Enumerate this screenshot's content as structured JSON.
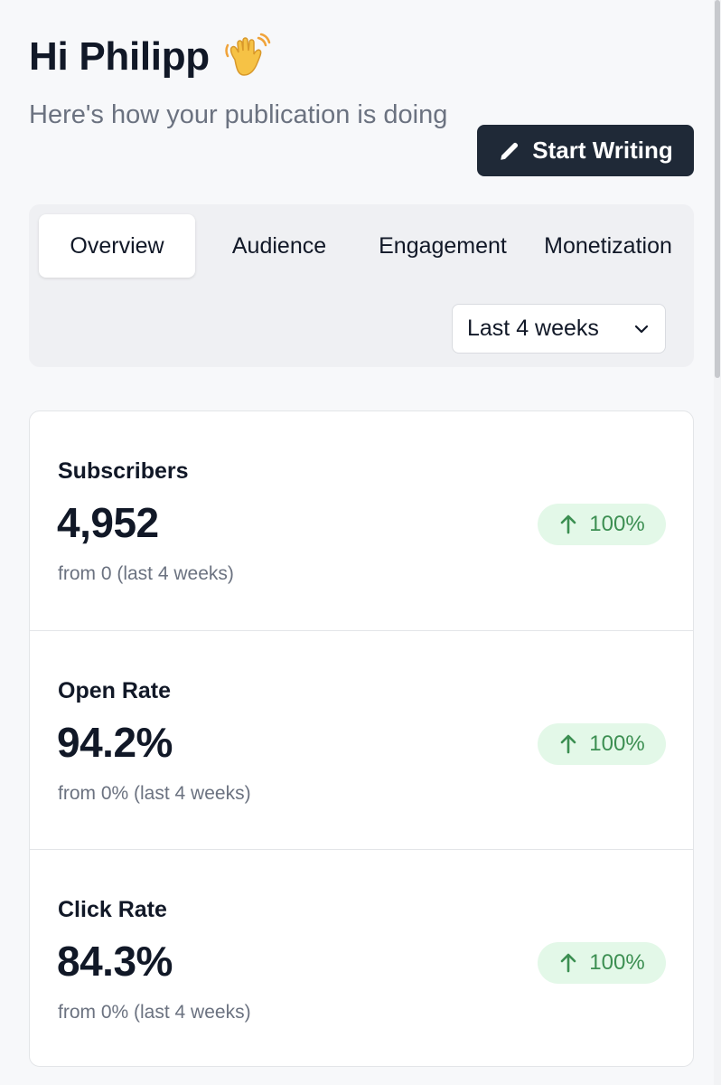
{
  "header": {
    "greeting": "Hi Philipp",
    "greeting_emoji": "waving-hand",
    "subtitle": "Here's how your publication is doing",
    "start_writing_label": "Start Writing"
  },
  "tabs": [
    {
      "label": "Overview",
      "active": true
    },
    {
      "label": "Audience",
      "active": false
    },
    {
      "label": "Engagement",
      "active": false
    },
    {
      "label": "Monetization",
      "active": false
    }
  ],
  "range_select": {
    "selected": "Last 4 weeks"
  },
  "stats": [
    {
      "label": "Subscribers",
      "value": "4,952",
      "sub": "from 0 (last 4 weeks)",
      "change": "100%",
      "direction": "up"
    },
    {
      "label": "Open Rate",
      "value": "94.2%",
      "sub": "from 0% (last 4 weeks)",
      "change": "100%",
      "direction": "up"
    },
    {
      "label": "Click Rate",
      "value": "84.3%",
      "sub": "from 0% (last 4 weeks)",
      "change": "100%",
      "direction": "up"
    }
  ],
  "colors": {
    "primary_button": "#1f2937",
    "positive_badge_bg": "#e3f8e8",
    "positive_badge_text": "#3c8f52",
    "muted_text": "#6b7280"
  }
}
